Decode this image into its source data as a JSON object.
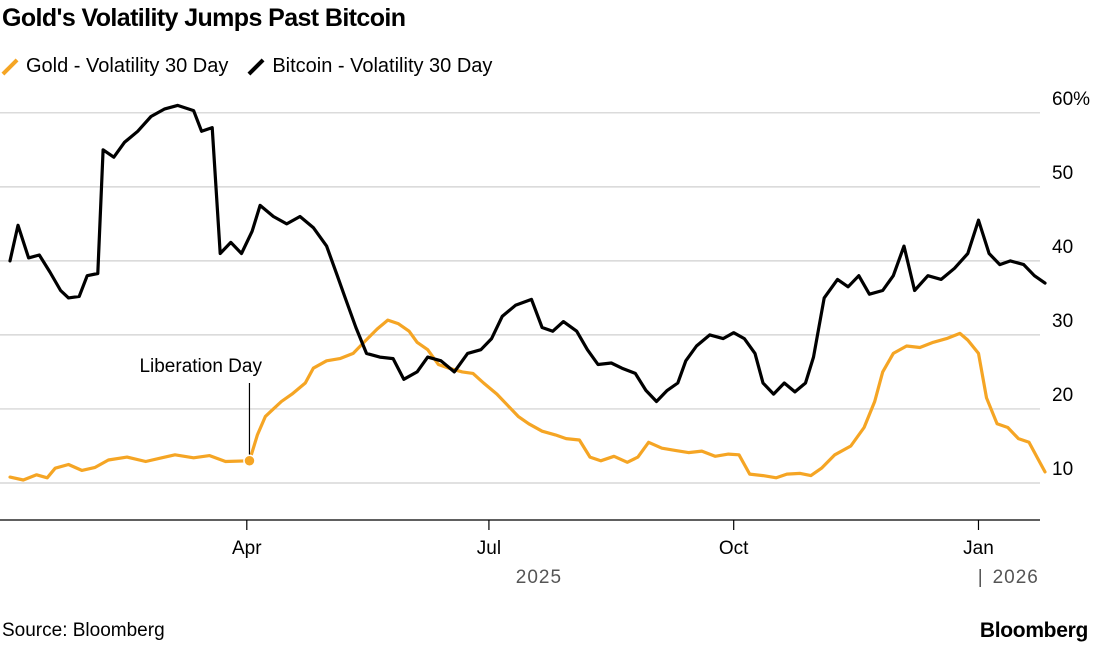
{
  "title": "Gold's Volatility Jumps Past Bitcoin",
  "source": "Source: Bloomberg",
  "brand": "Bloomberg",
  "colors": {
    "gold": "#f5a524",
    "bitcoin": "#000000",
    "grid": "#cfcfcf",
    "axis": "#000000"
  },
  "chart_data": {
    "type": "line",
    "title": "Gold's Volatility Jumps Past Bitcoin",
    "y_unit": "%",
    "ylim": [
      5,
      62
    ],
    "yticks": [
      10,
      20,
      30,
      40,
      50,
      60
    ],
    "ytick_labels": [
      "10",
      "20",
      "30",
      "40",
      "50",
      "60%"
    ],
    "xlim": [
      "2025-01-02",
      "2026-01-26"
    ],
    "xticks": [
      {
        "date": "2025-04-01",
        "label": "Apr"
      },
      {
        "date": "2025-07-01",
        "label": "Jul"
      },
      {
        "date": "2025-10-01",
        "label": "Oct"
      },
      {
        "date": "2026-01-01",
        "label": "Jan"
      }
    ],
    "year_labels": [
      {
        "date": "2025-07-01",
        "label": "2025"
      },
      {
        "date": "2026-01-15",
        "label": "2026"
      }
    ],
    "grid": true,
    "legend_position": "top-left",
    "annotation": {
      "label": "Liberation Day",
      "date": "2025-04-02",
      "series": "Gold - Volatility 30 Day",
      "value": 13
    },
    "series": [
      {
        "name": "Gold - Volatility 30 Day",
        "color": "#f5a524",
        "points": [
          [
            "2025-01-02",
            10.8
          ],
          [
            "2025-01-07",
            10.4
          ],
          [
            "2025-01-12",
            11.1
          ],
          [
            "2025-01-16",
            10.7
          ],
          [
            "2025-01-19",
            12.0
          ],
          [
            "2025-01-24",
            12.5
          ],
          [
            "2025-01-29",
            11.7
          ],
          [
            "2025-02-03",
            12.1
          ],
          [
            "2025-02-08",
            13.1
          ],
          [
            "2025-02-15",
            13.5
          ],
          [
            "2025-02-22",
            12.9
          ],
          [
            "2025-02-28",
            13.4
          ],
          [
            "2025-03-05",
            13.8
          ],
          [
            "2025-03-12",
            13.4
          ],
          [
            "2025-03-18",
            13.7
          ],
          [
            "2025-03-24",
            12.9
          ],
          [
            "2025-04-02",
            13.0
          ],
          [
            "2025-04-05",
            16.5
          ],
          [
            "2025-04-08",
            19.0
          ],
          [
            "2025-04-11",
            20.0
          ],
          [
            "2025-04-14",
            21.0
          ],
          [
            "2025-04-18",
            22.0
          ],
          [
            "2025-04-23",
            23.5
          ],
          [
            "2025-04-26",
            25.5
          ],
          [
            "2025-05-01",
            26.5
          ],
          [
            "2025-05-06",
            26.8
          ],
          [
            "2025-05-11",
            27.5
          ],
          [
            "2025-05-15",
            29.0
          ],
          [
            "2025-05-20",
            30.8
          ],
          [
            "2025-05-24",
            32.0
          ],
          [
            "2025-05-28",
            31.5
          ],
          [
            "2025-06-01",
            30.5
          ],
          [
            "2025-06-04",
            29.0
          ],
          [
            "2025-06-08",
            28.0
          ],
          [
            "2025-06-12",
            26.0
          ],
          [
            "2025-06-16",
            25.5
          ],
          [
            "2025-06-21",
            25.0
          ],
          [
            "2025-06-25",
            24.8
          ],
          [
            "2025-06-29",
            23.5
          ],
          [
            "2025-07-04",
            22.0
          ],
          [
            "2025-07-08",
            20.5
          ],
          [
            "2025-07-12",
            19.0
          ],
          [
            "2025-07-16",
            18.0
          ],
          [
            "2025-07-21",
            17.0
          ],
          [
            "2025-07-26",
            16.5
          ],
          [
            "2025-07-30",
            16.0
          ],
          [
            "2025-08-04",
            15.8
          ],
          [
            "2025-08-08",
            13.5
          ],
          [
            "2025-08-12",
            13.0
          ],
          [
            "2025-08-17",
            13.6
          ],
          [
            "2025-08-22",
            12.8
          ],
          [
            "2025-08-26",
            13.5
          ],
          [
            "2025-08-30",
            15.5
          ],
          [
            "2025-09-04",
            14.7
          ],
          [
            "2025-09-09",
            14.4
          ],
          [
            "2025-09-14",
            14.1
          ],
          [
            "2025-09-19",
            14.3
          ],
          [
            "2025-09-24",
            13.6
          ],
          [
            "2025-09-29",
            13.9
          ],
          [
            "2025-10-03",
            13.8
          ],
          [
            "2025-10-07",
            11.2
          ],
          [
            "2025-10-12",
            11.0
          ],
          [
            "2025-10-17",
            10.7
          ],
          [
            "2025-10-21",
            11.2
          ],
          [
            "2025-10-26",
            11.3
          ],
          [
            "2025-10-30",
            11.0
          ],
          [
            "2025-11-03",
            12.0
          ],
          [
            "2025-11-08",
            13.8
          ],
          [
            "2025-11-14",
            15.0
          ],
          [
            "2025-11-19",
            17.5
          ],
          [
            "2025-11-23",
            21.0
          ],
          [
            "2025-11-26",
            25.0
          ],
          [
            "2025-11-30",
            27.5
          ],
          [
            "2025-12-05",
            28.5
          ],
          [
            "2025-12-10",
            28.3
          ],
          [
            "2025-12-15",
            29.0
          ],
          [
            "2025-12-20",
            29.5
          ],
          [
            "2025-12-25",
            30.2
          ],
          [
            "2025-12-28",
            29.3
          ],
          [
            "2026-01-01",
            27.5
          ],
          [
            "2026-01-04",
            21.5
          ],
          [
            "2026-01-08",
            18.0
          ],
          [
            "2026-01-12",
            17.5
          ],
          [
            "2026-01-16",
            16.0
          ],
          [
            "2026-01-20",
            15.5
          ],
          [
            "2026-01-23",
            13.5
          ],
          [
            "2026-01-26",
            11.5
          ]
        ]
      },
      {
        "name": "Bitcoin - Volatility 30 Day",
        "color": "#000000",
        "points": [
          [
            "2025-01-02",
            40.0
          ],
          [
            "2025-01-05",
            44.8
          ],
          [
            "2025-01-09",
            40.4
          ],
          [
            "2025-01-13",
            40.8
          ],
          [
            "2025-01-17",
            38.5
          ],
          [
            "2025-01-21",
            36.0
          ],
          [
            "2025-01-24",
            35.0
          ],
          [
            "2025-01-28",
            35.2
          ],
          [
            "2025-01-31",
            38.0
          ],
          [
            "2025-02-04",
            38.3
          ],
          [
            "2025-02-06",
            55.0
          ],
          [
            "2025-02-10",
            54.0
          ],
          [
            "2025-02-14",
            56.0
          ],
          [
            "2025-02-19",
            57.5
          ],
          [
            "2025-02-24",
            59.5
          ],
          [
            "2025-03-01",
            60.5
          ],
          [
            "2025-03-06",
            61.0
          ],
          [
            "2025-03-12",
            60.3
          ],
          [
            "2025-03-15",
            57.5
          ],
          [
            "2025-03-19",
            58.0
          ],
          [
            "2025-03-22",
            41.0
          ],
          [
            "2025-03-26",
            42.5
          ],
          [
            "2025-03-30",
            41.0
          ],
          [
            "2025-04-03",
            44.0
          ],
          [
            "2025-04-06",
            47.5
          ],
          [
            "2025-04-11",
            46.0
          ],
          [
            "2025-04-16",
            45.0
          ],
          [
            "2025-04-21",
            46.0
          ],
          [
            "2025-04-26",
            44.5
          ],
          [
            "2025-05-01",
            42.0
          ],
          [
            "2025-05-05",
            38.0
          ],
          [
            "2025-05-08",
            35.0
          ],
          [
            "2025-05-12",
            31.0
          ],
          [
            "2025-05-16",
            27.5
          ],
          [
            "2025-05-21",
            27.0
          ],
          [
            "2025-05-26",
            26.8
          ],
          [
            "2025-05-30",
            24.0
          ],
          [
            "2025-06-04",
            25.0
          ],
          [
            "2025-06-08",
            27.0
          ],
          [
            "2025-06-13",
            26.5
          ],
          [
            "2025-06-18",
            25.0
          ],
          [
            "2025-06-23",
            27.5
          ],
          [
            "2025-06-28",
            28.0
          ],
          [
            "2025-07-02",
            29.5
          ],
          [
            "2025-07-06",
            32.5
          ],
          [
            "2025-07-11",
            34.0
          ],
          [
            "2025-07-17",
            34.8
          ],
          [
            "2025-07-21",
            31.0
          ],
          [
            "2025-07-25",
            30.5
          ],
          [
            "2025-07-29",
            31.8
          ],
          [
            "2025-08-03",
            30.5
          ],
          [
            "2025-08-07",
            28.0
          ],
          [
            "2025-08-11",
            26.0
          ],
          [
            "2025-08-16",
            26.2
          ],
          [
            "2025-08-20",
            25.5
          ],
          [
            "2025-08-25",
            24.8
          ],
          [
            "2025-08-29",
            22.5
          ],
          [
            "2025-09-02",
            21.0
          ],
          [
            "2025-09-06",
            22.5
          ],
          [
            "2025-09-10",
            23.5
          ],
          [
            "2025-09-13",
            26.5
          ],
          [
            "2025-09-17",
            28.5
          ],
          [
            "2025-09-22",
            30.0
          ],
          [
            "2025-09-27",
            29.5
          ],
          [
            "2025-10-01",
            30.3
          ],
          [
            "2025-10-05",
            29.5
          ],
          [
            "2025-10-09",
            27.5
          ],
          [
            "2025-10-12",
            23.5
          ],
          [
            "2025-10-16",
            22.0
          ],
          [
            "2025-10-20",
            23.5
          ],
          [
            "2025-10-24",
            22.3
          ],
          [
            "2025-10-28",
            23.5
          ],
          [
            "2025-10-31",
            27.0
          ],
          [
            "2025-11-04",
            35.0
          ],
          [
            "2025-11-09",
            37.5
          ],
          [
            "2025-11-13",
            36.5
          ],
          [
            "2025-11-17",
            38.0
          ],
          [
            "2025-11-21",
            35.5
          ],
          [
            "2025-11-26",
            36.0
          ],
          [
            "2025-11-30",
            38.0
          ],
          [
            "2025-12-04",
            42.0
          ],
          [
            "2025-12-08",
            36.0
          ],
          [
            "2025-12-13",
            38.0
          ],
          [
            "2025-12-18",
            37.5
          ],
          [
            "2025-12-23",
            39.0
          ],
          [
            "2025-12-28",
            41.0
          ],
          [
            "2026-01-01",
            45.5
          ],
          [
            "2026-01-05",
            41.0
          ],
          [
            "2026-01-09",
            39.5
          ],
          [
            "2026-01-13",
            40.0
          ],
          [
            "2026-01-18",
            39.5
          ],
          [
            "2026-01-22",
            38.0
          ],
          [
            "2026-01-26",
            37.0
          ]
        ]
      }
    ]
  }
}
